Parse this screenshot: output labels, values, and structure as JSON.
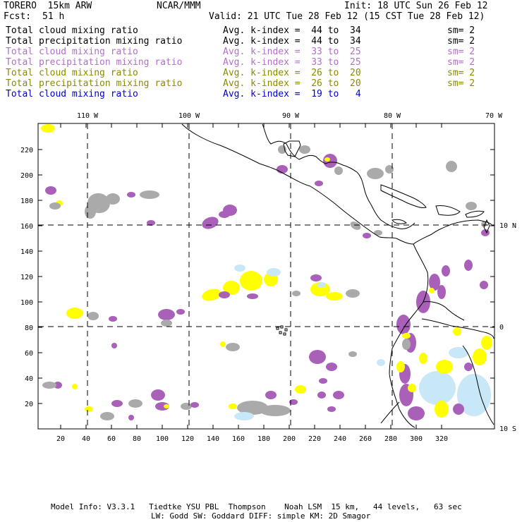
{
  "header": {
    "model": "TORERO  15km ARW",
    "org": "NCAR/MMM",
    "init": "Init: 18 UTC Sun 26 Feb 12",
    "fcst_label": "Fcst:",
    "fcst_value": "51 h",
    "valid": "Valid: 21 UTC Tue 28 Feb 12 (15 CST Tue 28 Feb 12)"
  },
  "legend": [
    {
      "field": "Total cloud mixing ratio",
      "index": "Avg. k-index =  44 to  34",
      "sm": "sm= 2",
      "color": "#000000"
    },
    {
      "field": "Total precipitation mixing ratio",
      "index": "Avg. k-index =  44 to  34",
      "sm": "sm= 2",
      "color": "#000000"
    },
    {
      "field": "Total cloud mixing ratio",
      "index": "Avg. k-index =  33 to  25",
      "sm": "sm= 2",
      "color": "#b070c8"
    },
    {
      "field": "Total precipitation mixing ratio",
      "index": "Avg. k-index =  33 to  25",
      "sm": "sm= 2",
      "color": "#b070c8"
    },
    {
      "field": "Total cloud mixing ratio",
      "index": "Avg. k-index =  26 to  20",
      "sm": "sm= 2",
      "color": "#8a8a00"
    },
    {
      "field": "Total precipitation mixing ratio",
      "index": "Avg. k-index =  26 to  20",
      "sm": "sm= 2",
      "color": "#8a8a00"
    },
    {
      "field": "Total cloud mixing ratio",
      "index": "Avg. k-index =  19 to   4",
      "sm": "",
      "color": "#0000cc"
    }
  ],
  "map": {
    "lon_labels": [
      "110 W",
      "100 W",
      "90 W",
      "80 W",
      "70 W"
    ],
    "lat_labels": [
      "10 N",
      "0",
      "10 S"
    ],
    "x_ticks": [
      "20",
      "40",
      "60",
      "80",
      "100",
      "120",
      "140",
      "160",
      "180",
      "200",
      "220",
      "240",
      "260",
      "280",
      "300",
      "320"
    ],
    "y_ticks": [
      "20",
      "40",
      "60",
      "80",
      "100",
      "120",
      "140",
      "160",
      "180",
      "200",
      "220"
    ],
    "colors": {
      "gray": "#aaaaaa",
      "purple": "#a860b8",
      "yellow": "#ffff00",
      "lightblue": "#c8e8f8"
    }
  },
  "footer": {
    "line1": "Model Info: V3.3.1   Tiedtke YSU PBL  Thompson    Noah LSM  15 km,   44 levels,   63 sec",
    "line2": "LW: Godd SW: Goddard DIFF: simple KM: 2D Smagor"
  }
}
